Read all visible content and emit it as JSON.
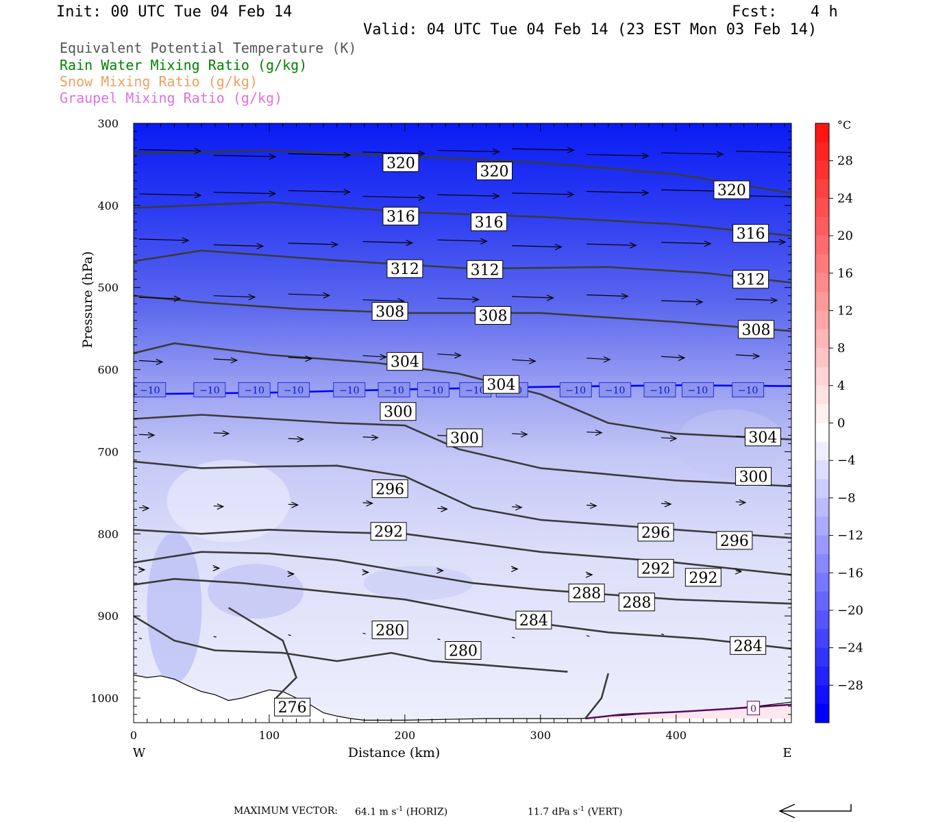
{
  "header": {
    "init": "Init: 00 UTC Tue 04 Feb 14",
    "fcst_label": "Fcst:",
    "fcst_value": "4 h",
    "valid": "Valid: 04 UTC Tue 04 Feb 14 (23 EST Mon 03 Feb 14)"
  },
  "legend": [
    {
      "text": "Equivalent Potential Temperature (K)",
      "color": "#555555"
    },
    {
      "text": "Rain Water Mixing Ratio (g/kg)",
      "color": "#008000"
    },
    {
      "text": "Snow Mixing Ratio (g/kg)",
      "color": "#f0a060"
    },
    {
      "text": "Graupel Mixing Ratio (g/kg)",
      "color": "#e070e0"
    }
  ],
  "chart_data": {
    "type": "cross-section contour",
    "xlabel": "Distance (km)",
    "ylabel": "Pressure (hPa)",
    "xlim": [
      0,
      485
    ],
    "ylim": [
      300,
      1030
    ],
    "x_ticks": [
      0,
      100,
      200,
      300,
      400
    ],
    "y_ticks": [
      300,
      400,
      500,
      600,
      700,
      800,
      900,
      1000
    ],
    "x_left_label": "W",
    "x_right_label": "E",
    "theta_e_contours": [
      {
        "level": 320,
        "points": [
          [
            0,
            337
          ],
          [
            100,
            333
          ],
          [
            200,
            340
          ],
          [
            300,
            348
          ],
          [
            400,
            362
          ],
          [
            485,
            385
          ]
        ],
        "labels": [
          [
            197,
            348
          ],
          [
            266,
            358
          ],
          [
            441,
            381
          ]
        ]
      },
      {
        "level": 316,
        "points": [
          [
            0,
            403
          ],
          [
            100,
            396
          ],
          [
            200,
            408
          ],
          [
            300,
            414
          ],
          [
            400,
            423
          ],
          [
            485,
            437
          ]
        ],
        "labels": [
          [
            197,
            413
          ],
          [
            262,
            420
          ],
          [
            455,
            434
          ]
        ]
      },
      {
        "level": 312,
        "points": [
          [
            0,
            468
          ],
          [
            50,
            455
          ],
          [
            150,
            467
          ],
          [
            250,
            477
          ],
          [
            350,
            475
          ],
          [
            420,
            482
          ],
          [
            485,
            494
          ]
        ],
        "labels": [
          [
            200,
            477
          ],
          [
            259,
            478
          ],
          [
            455,
            490
          ]
        ]
      },
      {
        "level": 308,
        "points": [
          [
            0,
            510
          ],
          [
            50,
            518
          ],
          [
            120,
            526
          ],
          [
            200,
            531
          ],
          [
            300,
            531
          ],
          [
            400,
            542
          ],
          [
            485,
            553
          ]
        ],
        "labels": [
          [
            189,
            529
          ],
          [
            265,
            534
          ],
          [
            459,
            551
          ]
        ]
      },
      {
        "level": 304,
        "points": [
          [
            0,
            580
          ],
          [
            30,
            568
          ],
          [
            100,
            582
          ],
          [
            180,
            592
          ],
          [
            240,
            605
          ],
          [
            300,
            630
          ],
          [
            350,
            665
          ],
          [
            400,
            678
          ],
          [
            485,
            685
          ]
        ],
        "labels": [
          [
            200,
            590
          ],
          [
            271,
            618
          ],
          [
            464,
            682
          ]
        ]
      },
      {
        "level": 300,
        "points": [
          [
            0,
            660
          ],
          [
            50,
            655
          ],
          [
            100,
            660
          ],
          [
            150,
            665
          ],
          [
            200,
            668
          ],
          [
            240,
            697
          ],
          [
            300,
            720
          ],
          [
            400,
            735
          ],
          [
            485,
            742
          ]
        ],
        "labels": [
          [
            195,
            651
          ],
          [
            244,
            683
          ],
          [
            457,
            730
          ]
        ]
      },
      {
        "level": 296,
        "points": [
          [
            0,
            712
          ],
          [
            50,
            720
          ],
          [
            100,
            718
          ],
          [
            150,
            717
          ],
          [
            200,
            730
          ],
          [
            250,
            768
          ],
          [
            300,
            783
          ],
          [
            400,
            795
          ],
          [
            485,
            805
          ]
        ],
        "labels": [
          [
            189,
            745
          ],
          [
            385,
            798
          ],
          [
            443,
            808
          ]
        ]
      },
      {
        "level": 292,
        "points": [
          [
            0,
            795
          ],
          [
            50,
            800
          ],
          [
            100,
            795
          ],
          [
            150,
            798
          ],
          [
            200,
            800
          ],
          [
            300,
            822
          ],
          [
            400,
            835
          ],
          [
            485,
            850
          ]
        ],
        "labels": [
          [
            188,
            797
          ],
          [
            385,
            842
          ],
          [
            420,
            853
          ]
        ]
      },
      {
        "level": 288,
        "points": [
          [
            0,
            835
          ],
          [
            50,
            822
          ],
          [
            100,
            824
          ],
          [
            150,
            832
          ],
          [
            250,
            860
          ],
          [
            300,
            868
          ],
          [
            400,
            880
          ],
          [
            485,
            885
          ]
        ],
        "labels": [
          [
            334,
            872
          ],
          [
            371,
            883
          ]
        ]
      },
      {
        "level": 284,
        "points": [
          [
            0,
            862
          ],
          [
            30,
            855
          ],
          [
            80,
            860
          ],
          [
            140,
            870
          ],
          [
            200,
            880
          ],
          [
            280,
            905
          ],
          [
            350,
            920
          ],
          [
            420,
            928
          ],
          [
            485,
            940
          ]
        ],
        "labels": [
          [
            295,
            905
          ],
          [
            453,
            936
          ]
        ]
      },
      {
        "level": 280,
        "points": [
          [
            0,
            900
          ],
          [
            30,
            930
          ],
          [
            60,
            942
          ],
          [
            110,
            945
          ],
          [
            150,
            955
          ],
          [
            190,
            945
          ],
          [
            220,
            955
          ],
          [
            260,
            960
          ],
          [
            320,
            968
          ]
        ],
        "labels": [
          [
            189,
            917
          ],
          [
            243,
            942
          ]
        ]
      },
      {
        "level": 276,
        "points": [
          [
            70,
            890
          ],
          [
            90,
            910
          ],
          [
            110,
            930
          ],
          [
            120,
            975
          ],
          [
            105,
            1000
          ]
        ],
        "labels": [
          [
            117,
            1011
          ]
        ]
      }
    ],
    "isotherm_minus10": {
      "level": -10,
      "color": "#0000ff",
      "points": [
        [
          0,
          630
        ],
        [
          100,
          628
        ],
        [
          200,
          624
        ],
        [
          300,
          621
        ],
        [
          400,
          619
        ],
        [
          485,
          620
        ]
      ],
      "label_x": [
        12,
        56,
        89,
        118,
        159,
        192,
        221,
        252,
        279,
        326,
        355,
        388,
        416,
        453
      ]
    },
    "temperature_colorbar": {
      "unit": "°C",
      "tick_labels": [
        "28",
        "24",
        "20",
        "16",
        "12",
        "8",
        "4",
        "0",
        "-4",
        "-8",
        "-12",
        "-16",
        "-20",
        "-24",
        "-28"
      ],
      "cold_color": "#0000ff",
      "warm_color": "#ff0000",
      "zero_color": "#ffffff"
    },
    "surface_0C_label": "0",
    "wind_vectors": "horizontal and vertical circulation vectors"
  },
  "footer": {
    "max_vector_label": "MAXIMUM VECTOR:",
    "horiz_value": "64.1 m s",
    "horiz_exp": "-1",
    "horiz_suffix": "(HORIZ)",
    "vert_value": "11.7 dPa s",
    "vert_exp": "-1",
    "vert_suffix": "(VERT)"
  }
}
